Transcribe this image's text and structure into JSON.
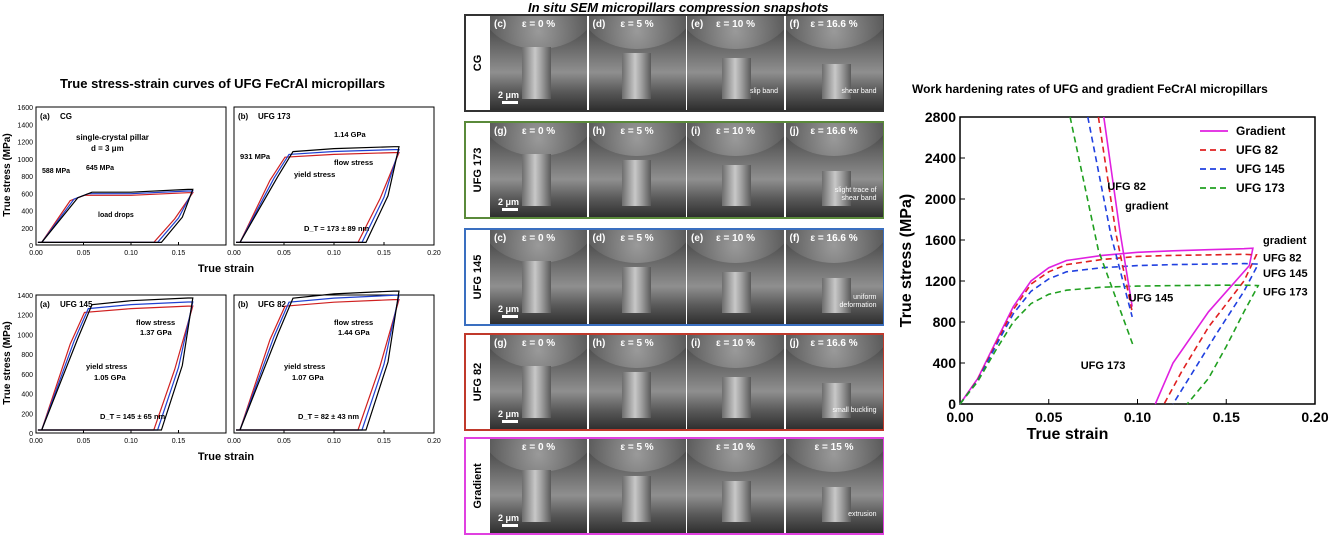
{
  "left_title": "True stress-strain curves of UFG FeCrAl micropillars",
  "middle_title": "In situ SEM micropillars compression snapshots",
  "right_title": "Work hardening rates of UFG and gradient FeCrAl micropillars",
  "left_panels": [
    {
      "tag": "(a)",
      "name": "CG",
      "annotations": [
        "single-crystal pillar",
        "d = 3 μm",
        "588 MPa",
        "645 MPa",
        "load drops"
      ]
    },
    {
      "tag": "(b)",
      "name": "UFG 173",
      "annotations": [
        "1.14 GPa",
        "931 MPa",
        "flow stress",
        "yield stress",
        "D_T = 173 ± 89 nm"
      ]
    },
    {
      "tag": "(a)",
      "name": "UFG 145",
      "annotations": [
        "flow stress",
        "1.37 GPa",
        "yield stress",
        "1.05 GPa",
        "D_T = 145 ± 65 nm"
      ]
    },
    {
      "tag": "(b)",
      "name": "UFG 82",
      "annotations": [
        "flow stress",
        "1.44 GPa",
        "yield stress",
        "1.07 GPa",
        "D_T = 82 ± 43 nm"
      ]
    }
  ],
  "left_axes": {
    "ylabel": "True stress (MPa)",
    "xlabel": "True strain",
    "top_yticks": [
      "0",
      "200",
      "400",
      "600",
      "800",
      "1000",
      "1200",
      "1400",
      "1600"
    ],
    "bottom_yticks": [
      "0",
      "200",
      "400",
      "600",
      "800",
      "1000",
      "1200",
      "1400"
    ],
    "xticks_a": [
      "0.00",
      "0.05",
      "0.10",
      "0.15"
    ],
    "xticks_b": [
      "0.00",
      "0.05",
      "0.10",
      "0.15",
      "0.20"
    ]
  },
  "sem_rows": [
    {
      "label": "CG",
      "color": "#333333",
      "tags": [
        "(c)",
        "(d)",
        "(e)",
        "(f)"
      ],
      "eps": [
        "ε = 0 %",
        "ε = 5 %",
        "ε = 10 %",
        "ε = 16.6 %"
      ],
      "note3": "slip band",
      "note4": "shear band"
    },
    {
      "label": "UFG 173",
      "color": "#5a8a3a",
      "tags": [
        "(g)",
        "(h)",
        "(i)",
        "(j)"
      ],
      "eps": [
        "ε = 0 %",
        "ε = 5 %",
        "ε = 10 %",
        "ε = 16.6 %"
      ],
      "note3": "",
      "note4": "slight trace of shear band"
    },
    {
      "label": "UFG 145",
      "color": "#3a6fc0",
      "tags": [
        "(c)",
        "(d)",
        "(e)",
        "(f)"
      ],
      "eps": [
        "ε = 0 %",
        "ε = 5 %",
        "ε = 10 %",
        "ε = 16.6 %"
      ],
      "note3": "",
      "note4": "uniform deformation"
    },
    {
      "label": "UFG 82",
      "color": "#c0392b",
      "tags": [
        "(g)",
        "(h)",
        "(i)",
        "(j)"
      ],
      "eps": [
        "ε = 0 %",
        "ε = 5 %",
        "ε = 10 %",
        "ε = 16.6 %"
      ],
      "note3": "",
      "note4": "small buckling"
    },
    {
      "label": "Gradient",
      "color": "#e040e0",
      "tags": [
        "",
        "",
        "",
        ""
      ],
      "eps": [
        "ε = 0 %",
        "ε = 5 %",
        "ε = 10 %",
        "ε = 15 %"
      ],
      "note3": "",
      "note4": "extrusion"
    }
  ],
  "scale_bar": "2 μm",
  "chart_data": {
    "type": "line",
    "xlabel": "True strain",
    "ylabel": "True stress (MPa)",
    "xlim": [
      0,
      0.2
    ],
    "ylim": [
      0,
      2800
    ],
    "xticks": [
      "0.00",
      "0.05",
      "0.10",
      "0.15",
      "0.20"
    ],
    "yticks": [
      "0",
      "400",
      "800",
      "1200",
      "1600",
      "2000",
      "2400",
      "2800"
    ],
    "legend_position": "top-right",
    "series": [
      {
        "name": "Gradient",
        "color": "#e020e0",
        "dash": "",
        "x": [
          0,
          0.01,
          0.02,
          0.03,
          0.04,
          0.05,
          0.06,
          0.08,
          0.1,
          0.12,
          0.14,
          0.16,
          0.165,
          0.163,
          0.14,
          0.12,
          0.11
        ],
        "y": [
          0,
          250,
          600,
          950,
          1200,
          1330,
          1400,
          1450,
          1480,
          1495,
          1505,
          1515,
          1520,
          1350,
          900,
          400,
          0
        ]
      },
      {
        "name": "UFG 82",
        "color": "#e02020",
        "dash": "6,4",
        "x": [
          0,
          0.01,
          0.02,
          0.03,
          0.04,
          0.05,
          0.06,
          0.08,
          0.1,
          0.12,
          0.14,
          0.16,
          0.167,
          0.16,
          0.14,
          0.125,
          0.115
        ],
        "y": [
          0,
          240,
          580,
          920,
          1170,
          1290,
          1360,
          1410,
          1440,
          1450,
          1455,
          1460,
          1455,
          1200,
          750,
          320,
          0
        ]
      },
      {
        "name": "UFG 145",
        "color": "#2040e0",
        "dash": "6,4",
        "x": [
          0,
          0.01,
          0.02,
          0.03,
          0.04,
          0.05,
          0.06,
          0.08,
          0.1,
          0.12,
          0.14,
          0.16,
          0.168,
          0.16,
          0.145,
          0.13,
          0.12
        ],
        "y": [
          0,
          230,
          560,
          880,
          1100,
          1220,
          1290,
          1330,
          1350,
          1360,
          1365,
          1370,
          1365,
          1100,
          700,
          280,
          0
        ]
      },
      {
        "name": "UFG 173",
        "color": "#20a020",
        "dash": "6,4",
        "x": [
          0,
          0.01,
          0.02,
          0.03,
          0.04,
          0.05,
          0.06,
          0.08,
          0.1,
          0.12,
          0.14,
          0.16,
          0.168,
          0.16,
          0.15,
          0.14,
          0.128
        ],
        "y": [
          0,
          220,
          520,
          800,
          980,
          1070,
          1110,
          1140,
          1150,
          1155,
          1158,
          1160,
          1155,
          900,
          560,
          250,
          0
        ]
      }
    ],
    "work_hardening": [
      {
        "name": "Gradient",
        "color": "#e020e0",
        "x": [
          0.081,
          0.09,
          0.097
        ],
        "y": [
          2800,
          1700,
          950
        ]
      },
      {
        "name": "UFG 82",
        "color": "#e02020",
        "x": [
          0.078,
          0.088,
          0.097
        ],
        "y": [
          2800,
          1650,
          900
        ]
      },
      {
        "name": "UFG 145",
        "color": "#2040e0",
        "x": [
          0.072,
          0.085,
          0.097
        ],
        "y": [
          2800,
          1650,
          850
        ]
      },
      {
        "name": "UFG 173",
        "color": "#20a020",
        "x": [
          0.062,
          0.078,
          0.098
        ],
        "y": [
          2800,
          1500,
          550
        ]
      }
    ],
    "annotations": [
      "UFG 82",
      "gradient",
      "UFG 145",
      "UFG 173"
    ],
    "end_labels": [
      "gradient",
      "UFG 82",
      "UFG 145",
      "UFG 173"
    ]
  }
}
